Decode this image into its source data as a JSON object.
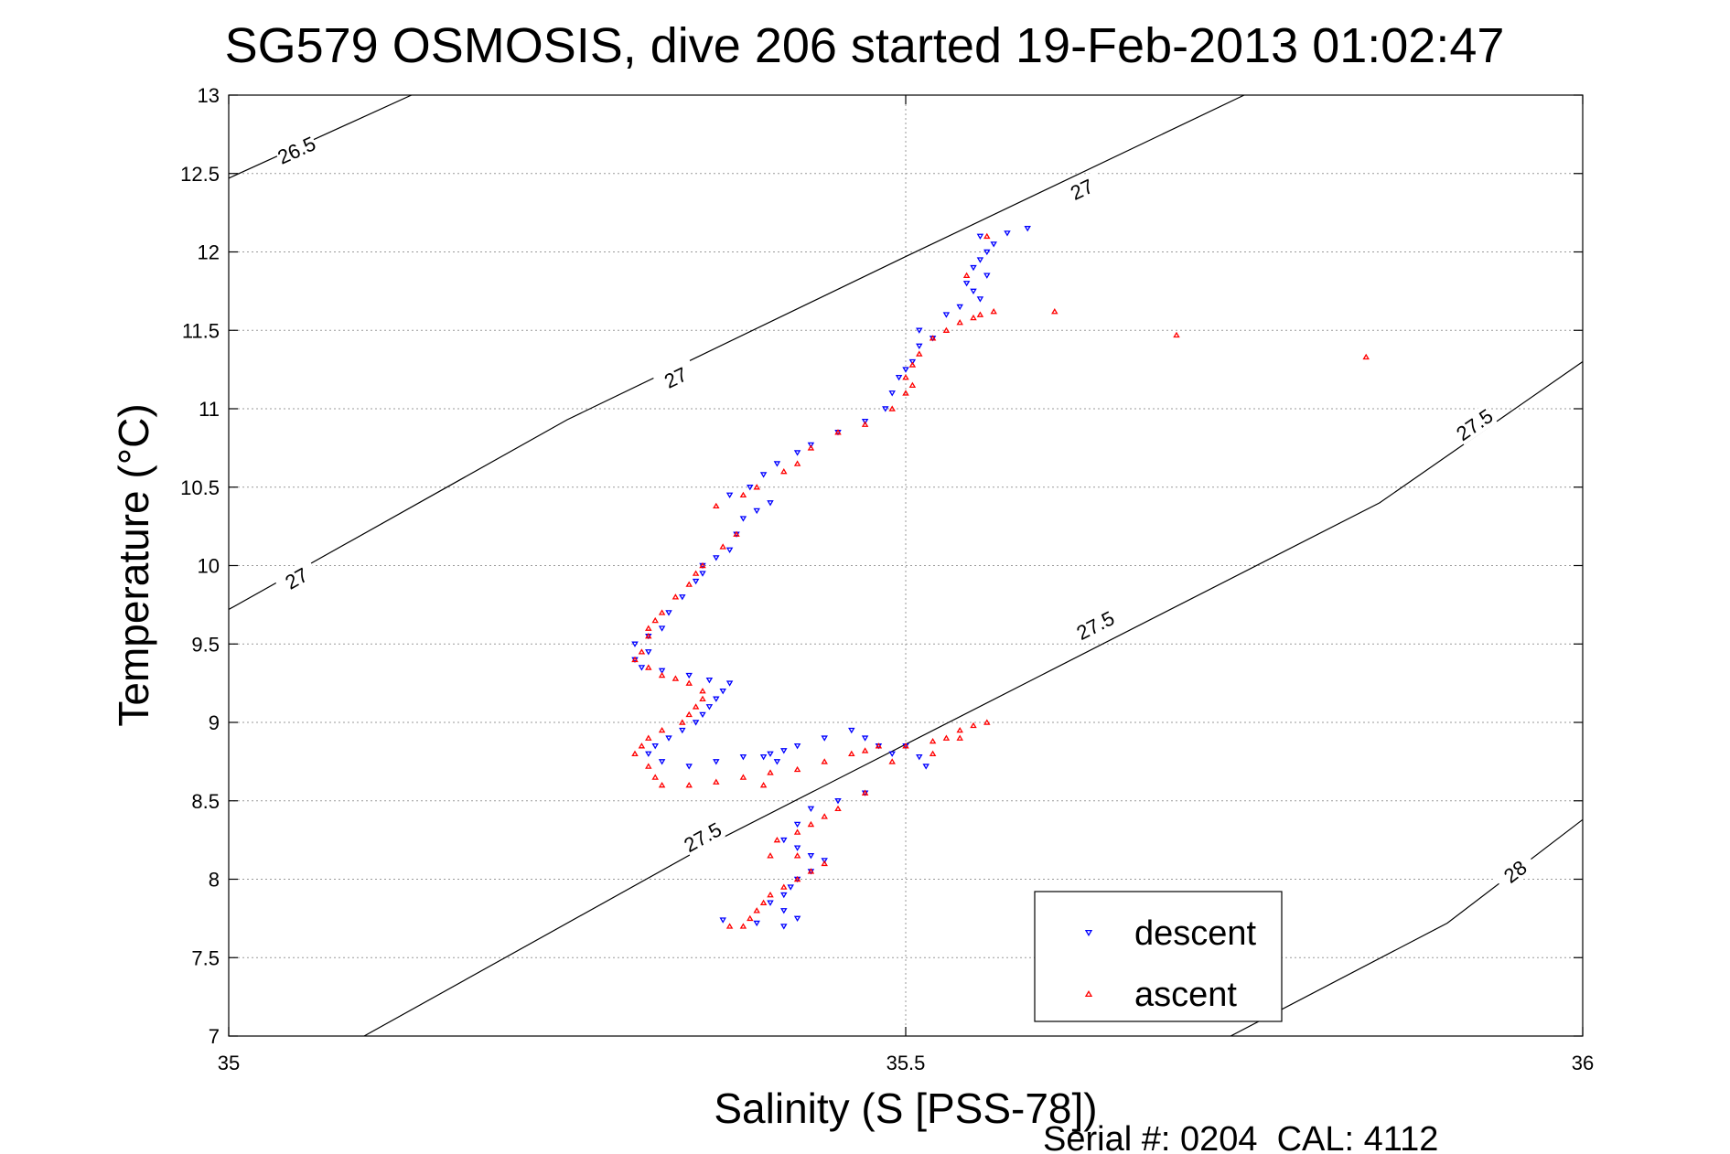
{
  "chart_data": {
    "type": "scatter",
    "title": "SG579 OSMOSIS, dive 206 started 19-Feb-2013 01:02:47",
    "xlabel": "Salinity (S [PSS-78])",
    "ylabel": "Temperature (°C)",
    "xlim": [
      35,
      36
    ],
    "ylim": [
      7,
      13
    ],
    "xticks": [
      35,
      35.5,
      36
    ],
    "yticks": [
      7,
      7.5,
      8,
      8.5,
      9,
      9.5,
      10,
      10.5,
      11,
      11.5,
      12,
      12.5,
      13
    ],
    "grid": true,
    "legend_position": "bottom-right",
    "footer": "Serial #: 0204  CAL: 4112",
    "contours": [
      {
        "label": "26.5",
        "points": [
          [
            35.0,
            12.47
          ],
          [
            35.135,
            13.0
          ]
        ],
        "labels_at": [
          [
            35.05,
            12.65
          ]
        ]
      },
      {
        "label": "27",
        "points": [
          [
            35.0,
            9.72
          ],
          [
            35.25,
            10.93
          ],
          [
            35.5,
            11.97
          ],
          [
            35.75,
            13.0
          ]
        ],
        "labels_at": [
          [
            35.05,
            9.92
          ],
          [
            35.33,
            11.2
          ],
          [
            35.63,
            12.4
          ]
        ]
      },
      {
        "label": "27.5",
        "points": [
          [
            35.1,
            7.0
          ],
          [
            35.35,
            8.2
          ],
          [
            35.6,
            9.3
          ],
          [
            35.85,
            10.4
          ],
          [
            36.0,
            11.3
          ]
        ],
        "labels_at": [
          [
            35.35,
            8.27
          ],
          [
            35.64,
            9.62
          ],
          [
            35.92,
            10.9
          ]
        ]
      },
      {
        "label": "28",
        "points": [
          [
            35.74,
            7.0
          ],
          [
            35.9,
            7.72
          ],
          [
            36.0,
            8.38
          ]
        ],
        "labels_at": [
          [
            35.95,
            8.05
          ]
        ]
      }
    ],
    "series": [
      {
        "name": "descent",
        "color": "#0000ff",
        "marker": "triangle-down",
        "points": [
          [
            35.59,
            12.15
          ],
          [
            35.575,
            12.12
          ],
          [
            35.555,
            12.1
          ],
          [
            35.565,
            12.05
          ],
          [
            35.56,
            12.0
          ],
          [
            35.555,
            11.95
          ],
          [
            35.55,
            11.9
          ],
          [
            35.56,
            11.85
          ],
          [
            35.545,
            11.8
          ],
          [
            35.55,
            11.75
          ],
          [
            35.555,
            11.7
          ],
          [
            35.54,
            11.65
          ],
          [
            35.53,
            11.6
          ],
          [
            35.51,
            11.5
          ],
          [
            35.52,
            11.45
          ],
          [
            35.51,
            11.4
          ],
          [
            35.505,
            11.3
          ],
          [
            35.5,
            11.25
          ],
          [
            35.495,
            11.2
          ],
          [
            35.49,
            11.1
          ],
          [
            35.485,
            11.0
          ],
          [
            35.47,
            10.92
          ],
          [
            35.45,
            10.85
          ],
          [
            35.43,
            10.77
          ],
          [
            35.42,
            10.72
          ],
          [
            35.405,
            10.65
          ],
          [
            35.395,
            10.58
          ],
          [
            35.385,
            10.5
          ],
          [
            35.37,
            10.45
          ],
          [
            35.4,
            10.4
          ],
          [
            35.39,
            10.35
          ],
          [
            35.38,
            10.3
          ],
          [
            35.375,
            10.2
          ],
          [
            35.37,
            10.1
          ],
          [
            35.36,
            10.05
          ],
          [
            35.35,
            10.0
          ],
          [
            35.35,
            9.95
          ],
          [
            35.345,
            9.9
          ],
          [
            35.335,
            9.8
          ],
          [
            35.325,
            9.7
          ],
          [
            35.32,
            9.6
          ],
          [
            35.31,
            9.55
          ],
          [
            35.3,
            9.5
          ],
          [
            35.31,
            9.45
          ],
          [
            35.3,
            9.4
          ],
          [
            35.305,
            9.35
          ],
          [
            35.32,
            9.33
          ],
          [
            35.34,
            9.3
          ],
          [
            35.355,
            9.27
          ],
          [
            35.37,
            9.25
          ],
          [
            35.365,
            9.2
          ],
          [
            35.36,
            9.15
          ],
          [
            35.355,
            9.1
          ],
          [
            35.35,
            9.05
          ],
          [
            35.345,
            9.0
          ],
          [
            35.335,
            8.95
          ],
          [
            35.325,
            8.9
          ],
          [
            35.315,
            8.85
          ],
          [
            35.31,
            8.8
          ],
          [
            35.32,
            8.75
          ],
          [
            35.34,
            8.72
          ],
          [
            35.36,
            8.75
          ],
          [
            35.38,
            8.78
          ],
          [
            35.4,
            8.8
          ],
          [
            35.41,
            8.82
          ],
          [
            35.395,
            8.78
          ],
          [
            35.405,
            8.75
          ],
          [
            35.42,
            8.85
          ],
          [
            35.44,
            8.9
          ],
          [
            35.46,
            8.95
          ],
          [
            35.47,
            8.9
          ],
          [
            35.48,
            8.85
          ],
          [
            35.49,
            8.8
          ],
          [
            35.5,
            8.85
          ],
          [
            35.51,
            8.78
          ],
          [
            35.515,
            8.72
          ],
          [
            35.47,
            8.55
          ],
          [
            35.45,
            8.5
          ],
          [
            35.43,
            8.45
          ],
          [
            35.42,
            8.35
          ],
          [
            35.41,
            8.25
          ],
          [
            35.42,
            8.2
          ],
          [
            35.43,
            8.15
          ],
          [
            35.44,
            8.12
          ],
          [
            35.43,
            8.05
          ],
          [
            35.42,
            8.0
          ],
          [
            35.415,
            7.95
          ],
          [
            35.41,
            7.9
          ],
          [
            35.4,
            7.85
          ],
          [
            35.41,
            7.8
          ],
          [
            35.42,
            7.75
          ],
          [
            35.41,
            7.7
          ],
          [
            35.39,
            7.72
          ],
          [
            35.365,
            7.74
          ]
        ]
      },
      {
        "name": "ascent",
        "color": "#ff0000",
        "marker": "triangle-up",
        "points": [
          [
            35.56,
            12.1
          ],
          [
            35.545,
            11.85
          ],
          [
            35.565,
            11.62
          ],
          [
            35.555,
            11.6
          ],
          [
            35.55,
            11.58
          ],
          [
            35.54,
            11.55
          ],
          [
            35.53,
            11.5
          ],
          [
            35.52,
            11.45
          ],
          [
            35.51,
            11.35
          ],
          [
            35.505,
            11.28
          ],
          [
            35.5,
            11.2
          ],
          [
            35.505,
            11.15
          ],
          [
            35.5,
            11.1
          ],
          [
            35.49,
            11.0
          ],
          [
            35.47,
            10.9
          ],
          [
            35.45,
            10.85
          ],
          [
            35.43,
            10.75
          ],
          [
            35.42,
            10.65
          ],
          [
            35.41,
            10.6
          ],
          [
            35.39,
            10.5
          ],
          [
            35.38,
            10.45
          ],
          [
            35.36,
            10.38
          ],
          [
            35.375,
            10.2
          ],
          [
            35.365,
            10.12
          ],
          [
            35.35,
            10.0
          ],
          [
            35.345,
            9.95
          ],
          [
            35.34,
            9.88
          ],
          [
            35.33,
            9.8
          ],
          [
            35.32,
            9.7
          ],
          [
            35.315,
            9.65
          ],
          [
            35.31,
            9.6
          ],
          [
            35.31,
            9.55
          ],
          [
            35.305,
            9.45
          ],
          [
            35.3,
            9.4
          ],
          [
            35.31,
            9.35
          ],
          [
            35.32,
            9.3
          ],
          [
            35.33,
            9.28
          ],
          [
            35.34,
            9.25
          ],
          [
            35.35,
            9.2
          ],
          [
            35.35,
            9.15
          ],
          [
            35.345,
            9.1
          ],
          [
            35.34,
            9.05
          ],
          [
            35.335,
            9.0
          ],
          [
            35.32,
            8.95
          ],
          [
            35.31,
            8.9
          ],
          [
            35.305,
            8.85
          ],
          [
            35.3,
            8.8
          ],
          [
            35.31,
            8.72
          ],
          [
            35.315,
            8.65
          ],
          [
            35.32,
            8.6
          ],
          [
            35.34,
            8.6
          ],
          [
            35.36,
            8.62
          ],
          [
            35.38,
            8.65
          ],
          [
            35.4,
            8.68
          ],
          [
            35.395,
            8.6
          ],
          [
            35.42,
            8.7
          ],
          [
            35.44,
            8.75
          ],
          [
            35.46,
            8.8
          ],
          [
            35.47,
            8.82
          ],
          [
            35.48,
            8.85
          ],
          [
            35.5,
            8.85
          ],
          [
            35.52,
            8.88
          ],
          [
            35.53,
            8.9
          ],
          [
            35.54,
            8.95
          ],
          [
            35.55,
            8.98
          ],
          [
            35.56,
            9.0
          ],
          [
            35.54,
            8.9
          ],
          [
            35.52,
            8.8
          ],
          [
            35.49,
            8.75
          ],
          [
            35.47,
            8.55
          ],
          [
            35.45,
            8.45
          ],
          [
            35.44,
            8.4
          ],
          [
            35.43,
            8.35
          ],
          [
            35.42,
            8.3
          ],
          [
            35.405,
            8.25
          ],
          [
            35.4,
            8.15
          ],
          [
            35.42,
            8.15
          ],
          [
            35.44,
            8.1
          ],
          [
            35.43,
            8.05
          ],
          [
            35.42,
            8.0
          ],
          [
            35.41,
            7.95
          ],
          [
            35.4,
            7.9
          ],
          [
            35.395,
            7.85
          ],
          [
            35.39,
            7.8
          ],
          [
            35.385,
            7.75
          ],
          [
            35.38,
            7.7
          ],
          [
            35.37,
            7.7
          ],
          [
            35.61,
            11.62
          ],
          [
            35.7,
            11.47
          ],
          [
            35.84,
            11.33
          ]
        ]
      }
    ]
  }
}
